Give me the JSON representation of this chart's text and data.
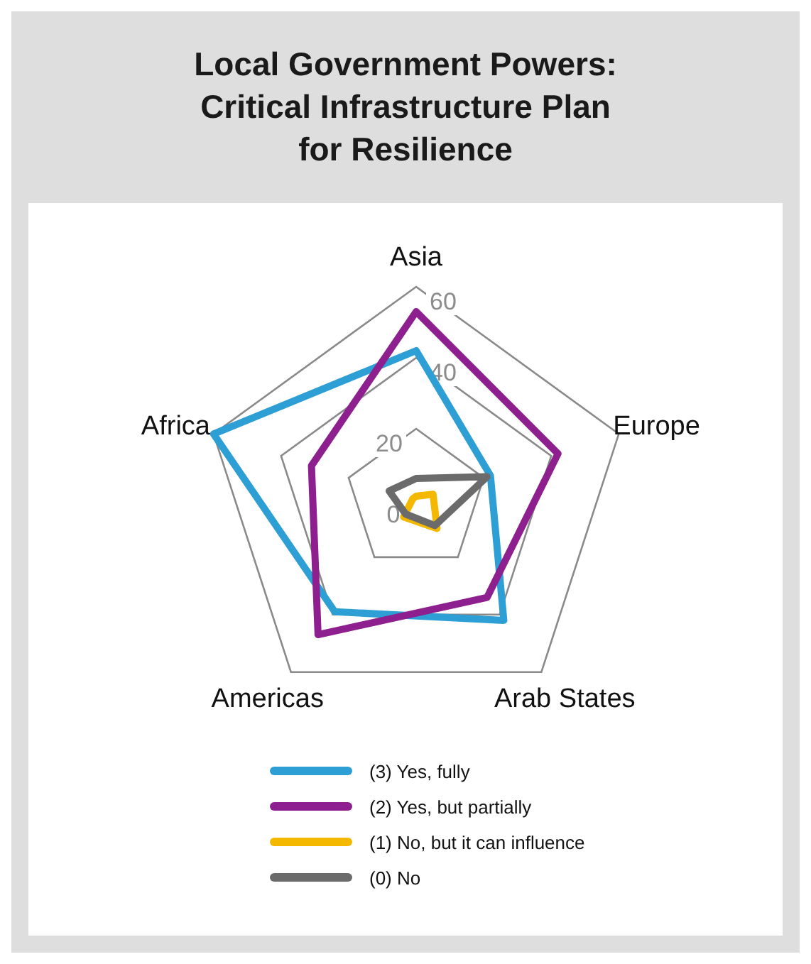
{
  "chart_data": {
    "type": "radar",
    "title": "Local Government Powers:\nCritical Infrastructure Plan\nfor Resilience",
    "categories": [
      "Asia",
      "Europe",
      "Arab States",
      "Americas",
      "Africa"
    ],
    "ylim": [
      0,
      60
    ],
    "yticks": [
      0,
      20,
      40,
      60
    ],
    "legend": "bottom",
    "series": [
      {
        "name": "(3) Yes, fully",
        "color": "#2e9fd4",
        "values": [
          42,
          22,
          42,
          39,
          60
        ]
      },
      {
        "name": "(2) Yes, but partially",
        "color": "#8e1f8e",
        "values": [
          53,
          42,
          34,
          47,
          31
        ]
      },
      {
        "name": "(1) No, but it can influence",
        "color": "#f5b800",
        "values": [
          1,
          5,
          10,
          6,
          1
        ]
      },
      {
        "name": "(0) No",
        "color": "#6b6b6b",
        "values": [
          6,
          21,
          9,
          5,
          8
        ]
      }
    ]
  }
}
